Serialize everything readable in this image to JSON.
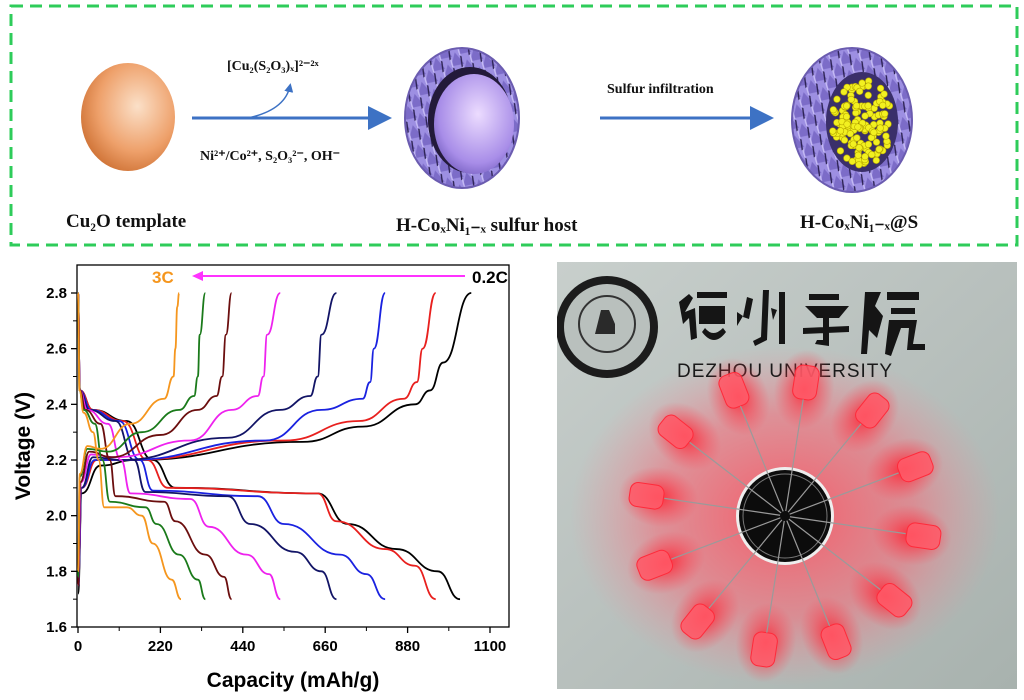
{
  "schematic": {
    "step1_label": "Cu₂O template",
    "step2_label": "H-CoₓNi₁₋ₓ sulfur host",
    "step3_label": "H-CoₓNi₁₋ₓ@S",
    "byproduct_label": "[Cu₂(S₂O₃)ₓ]²⁻²ˣ",
    "reagents_label": "Ni²⁺/Co²⁺, S₂O₃²⁻, OH⁻",
    "arrow2_label": "Sulfur infiltration",
    "colors": {
      "border": "#2ecc5a",
      "arrow": "#3d72c4",
      "template": "#e8a06a",
      "host": "#9b8be0",
      "sulfur": "#f2f020"
    }
  },
  "photo": {
    "logo_text_cn": "德州学院",
    "logo_text_en": "DEZHOU UNIVERSITY",
    "led_color": "#ff3b4a"
  },
  "chart_data": {
    "type": "line",
    "xlabel": "Capacity (mAh/g)",
    "ylabel": "Voltage (V)",
    "xlim": [
      0,
      1100
    ],
    "ylim": [
      1.6,
      2.9
    ],
    "xticks": [
      "0",
      "220",
      "440",
      "660",
      "880",
      "1100"
    ],
    "yticks": [
      "1.6",
      "1.8",
      "2.0",
      "2.2",
      "2.4",
      "2.6",
      "2.8"
    ],
    "grid": false,
    "annotations": {
      "high_rate": "3C",
      "low_rate": "0.2C",
      "arrow_color": "#ff33ff",
      "high_color": "#f5961e",
      "low_color": "#000000"
    },
    "series": [
      {
        "color": "#000000",
        "label": "0.2C",
        "discharge": [
          [
            0,
            2.8
          ],
          [
            5,
            2.45
          ],
          [
            40,
            2.38
          ],
          [
            130,
            2.34
          ],
          [
            200,
            2.2
          ],
          [
            260,
            2.1
          ],
          [
            640,
            2.08
          ],
          [
            720,
            1.97
          ],
          [
            850,
            1.88
          ],
          [
            960,
            1.8
          ],
          [
            1020,
            1.7
          ]
        ],
        "charge": [
          [
            0,
            1.72
          ],
          [
            10,
            2.08
          ],
          [
            60,
            2.18
          ],
          [
            150,
            2.2
          ],
          [
            600,
            2.265
          ],
          [
            760,
            2.32
          ],
          [
            900,
            2.4
          ],
          [
            940,
            2.45
          ],
          [
            975,
            2.55
          ],
          [
            1050,
            2.8
          ]
        ]
      },
      {
        "color": "#e8201e",
        "discharge": [
          [
            0,
            2.8
          ],
          [
            5,
            2.45
          ],
          [
            40,
            2.38
          ],
          [
            120,
            2.34
          ],
          [
            185,
            2.2
          ],
          [
            240,
            2.1
          ],
          [
            640,
            2.08
          ],
          [
            690,
            1.98
          ],
          [
            820,
            1.88
          ],
          [
            900,
            1.82
          ],
          [
            955,
            1.7
          ]
        ],
        "charge": [
          [
            0,
            1.75
          ],
          [
            10,
            2.1
          ],
          [
            50,
            2.2
          ],
          [
            140,
            2.2
          ],
          [
            550,
            2.27
          ],
          [
            750,
            2.34
          ],
          [
            870,
            2.42
          ],
          [
            905,
            2.48
          ],
          [
            920,
            2.6
          ],
          [
            955,
            2.8
          ]
        ]
      },
      {
        "color": "#1a22e0",
        "discharge": [
          [
            0,
            2.8
          ],
          [
            5,
            2.45
          ],
          [
            35,
            2.38
          ],
          [
            110,
            2.34
          ],
          [
            165,
            2.2
          ],
          [
            200,
            2.09
          ],
          [
            480,
            2.07
          ],
          [
            550,
            1.97
          ],
          [
            700,
            1.86
          ],
          [
            770,
            1.79
          ],
          [
            820,
            1.7
          ]
        ],
        "charge": [
          [
            0,
            1.75
          ],
          [
            10,
            2.1
          ],
          [
            45,
            2.2
          ],
          [
            130,
            2.2
          ],
          [
            500,
            2.27
          ],
          [
            650,
            2.38
          ],
          [
            760,
            2.42
          ],
          [
            780,
            2.48
          ],
          [
            790,
            2.6
          ],
          [
            820,
            2.8
          ]
        ]
      },
      {
        "color": "#121466",
        "discharge": [
          [
            0,
            2.8
          ],
          [
            5,
            2.45
          ],
          [
            30,
            2.38
          ],
          [
            100,
            2.34
          ],
          [
            150,
            2.2
          ],
          [
            180,
            2.085
          ],
          [
            400,
            2.07
          ],
          [
            460,
            1.97
          ],
          [
            580,
            1.87
          ],
          [
            650,
            1.8
          ],
          [
            690,
            1.7
          ]
        ],
        "charge": [
          [
            0,
            1.75
          ],
          [
            10,
            2.1
          ],
          [
            40,
            2.21
          ],
          [
            120,
            2.2
          ],
          [
            400,
            2.28
          ],
          [
            540,
            2.38
          ],
          [
            620,
            2.43
          ],
          [
            640,
            2.5
          ],
          [
            650,
            2.65
          ],
          [
            690,
            2.8
          ]
        ]
      },
      {
        "color": "#ee22ee",
        "discharge": [
          [
            0,
            2.8
          ],
          [
            5,
            2.45
          ],
          [
            25,
            2.38
          ],
          [
            80,
            2.33
          ],
          [
            115,
            2.2
          ],
          [
            140,
            2.08
          ],
          [
            300,
            2.06
          ],
          [
            350,
            1.96
          ],
          [
            450,
            1.86
          ],
          [
            510,
            1.79
          ],
          [
            540,
            1.7
          ]
        ],
        "charge": [
          [
            0,
            1.75
          ],
          [
            8,
            2.12
          ],
          [
            35,
            2.22
          ],
          [
            100,
            2.21
          ],
          [
            300,
            2.27
          ],
          [
            410,
            2.38
          ],
          [
            480,
            2.43
          ],
          [
            495,
            2.5
          ],
          [
            505,
            2.65
          ],
          [
            540,
            2.8
          ]
        ]
      },
      {
        "color": "#6b0e0e",
        "discharge": [
          [
            0,
            2.8
          ],
          [
            5,
            2.45
          ],
          [
            20,
            2.38
          ],
          [
            60,
            2.33
          ],
          [
            85,
            2.2
          ],
          [
            100,
            2.07
          ],
          [
            230,
            2.05
          ],
          [
            260,
            1.98
          ],
          [
            340,
            1.86
          ],
          [
            390,
            1.78
          ],
          [
            410,
            1.7
          ]
        ],
        "charge": [
          [
            0,
            1.75
          ],
          [
            6,
            2.12
          ],
          [
            30,
            2.23
          ],
          [
            90,
            2.21
          ],
          [
            220,
            2.29
          ],
          [
            320,
            2.38
          ],
          [
            370,
            2.43
          ],
          [
            385,
            2.5
          ],
          [
            395,
            2.65
          ],
          [
            410,
            2.8
          ]
        ]
      },
      {
        "color": "#1a7a1a",
        "discharge": [
          [
            0,
            2.8
          ],
          [
            4,
            2.45
          ],
          [
            15,
            2.38
          ],
          [
            45,
            2.33
          ],
          [
            65,
            2.2
          ],
          [
            85,
            2.05
          ],
          [
            180,
            2.03
          ],
          [
            210,
            1.97
          ],
          [
            270,
            1.86
          ],
          [
            320,
            1.77
          ],
          [
            340,
            1.7
          ]
        ],
        "charge": [
          [
            0,
            1.78
          ],
          [
            5,
            2.14
          ],
          [
            25,
            2.24
          ],
          [
            80,
            2.23
          ],
          [
            170,
            2.3
          ],
          [
            270,
            2.38
          ],
          [
            310,
            2.43
          ],
          [
            320,
            2.5
          ],
          [
            325,
            2.65
          ],
          [
            340,
            2.8
          ]
        ]
      },
      {
        "color": "#f5961e",
        "label": "3C",
        "discharge": [
          [
            0,
            2.8
          ],
          [
            4,
            2.45
          ],
          [
            15,
            2.37
          ],
          [
            40,
            2.3
          ],
          [
            55,
            2.2
          ],
          [
            70,
            2.03
          ],
          [
            130,
            2.03
          ],
          [
            170,
            2.0
          ],
          [
            200,
            1.9
          ],
          [
            250,
            1.77
          ],
          [
            275,
            1.7
          ]
        ],
        "charge": [
          [
            0,
            1.8
          ],
          [
            5,
            2.15
          ],
          [
            25,
            2.25
          ],
          [
            60,
            2.24
          ],
          [
            140,
            2.33
          ],
          [
            230,
            2.42
          ],
          [
            255,
            2.5
          ],
          [
            260,
            2.6
          ],
          [
            265,
            2.75
          ],
          [
            270,
            2.8
          ]
        ]
      }
    ]
  }
}
